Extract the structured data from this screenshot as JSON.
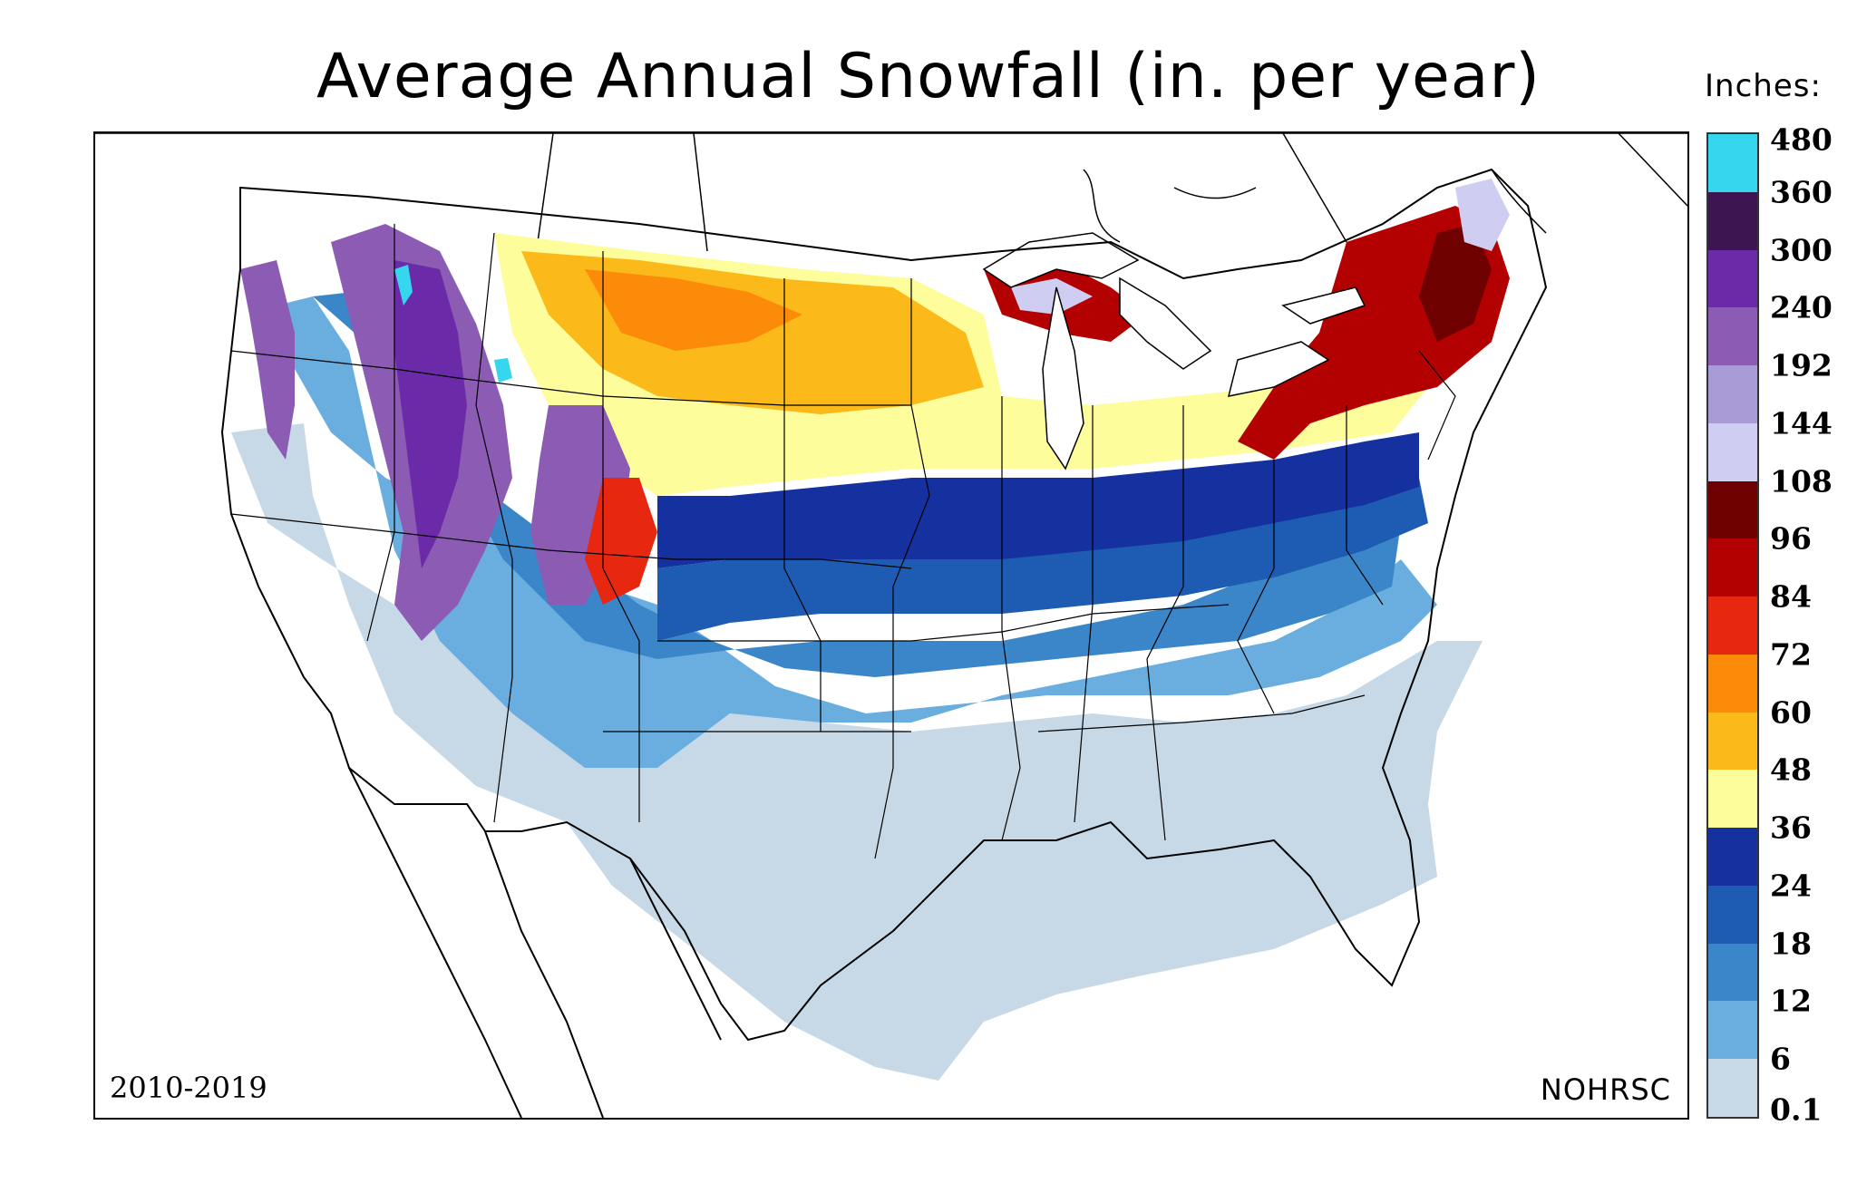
{
  "map": {
    "title": "Average Annual Snowfall (in. per year)",
    "period": "2010-2019",
    "source": "NOHRSC"
  },
  "legend": {
    "title": "Inches:",
    "labels": [
      "480",
      "360",
      "300",
      "240",
      "192",
      "144",
      "108",
      "96",
      "84",
      "72",
      "60",
      "48",
      "36",
      "24",
      "18",
      "12",
      "6",
      "0.1"
    ],
    "colors": [
      "#36d6ef",
      "#3d1550",
      "#6b2aa8",
      "#8c5cb4",
      "#a89bd6",
      "#cfcdf2",
      "#6e0000",
      "#b30000",
      "#e82710",
      "#fc8b0a",
      "#fcba1a",
      "#fefd9c",
      "#1531a0",
      "#1e5cb3",
      "#3a86c8",
      "#6aaedf",
      "#c7d9e6"
    ]
  },
  "colors": {
    "land_outside": "#ffffff",
    "border": "#000000"
  }
}
